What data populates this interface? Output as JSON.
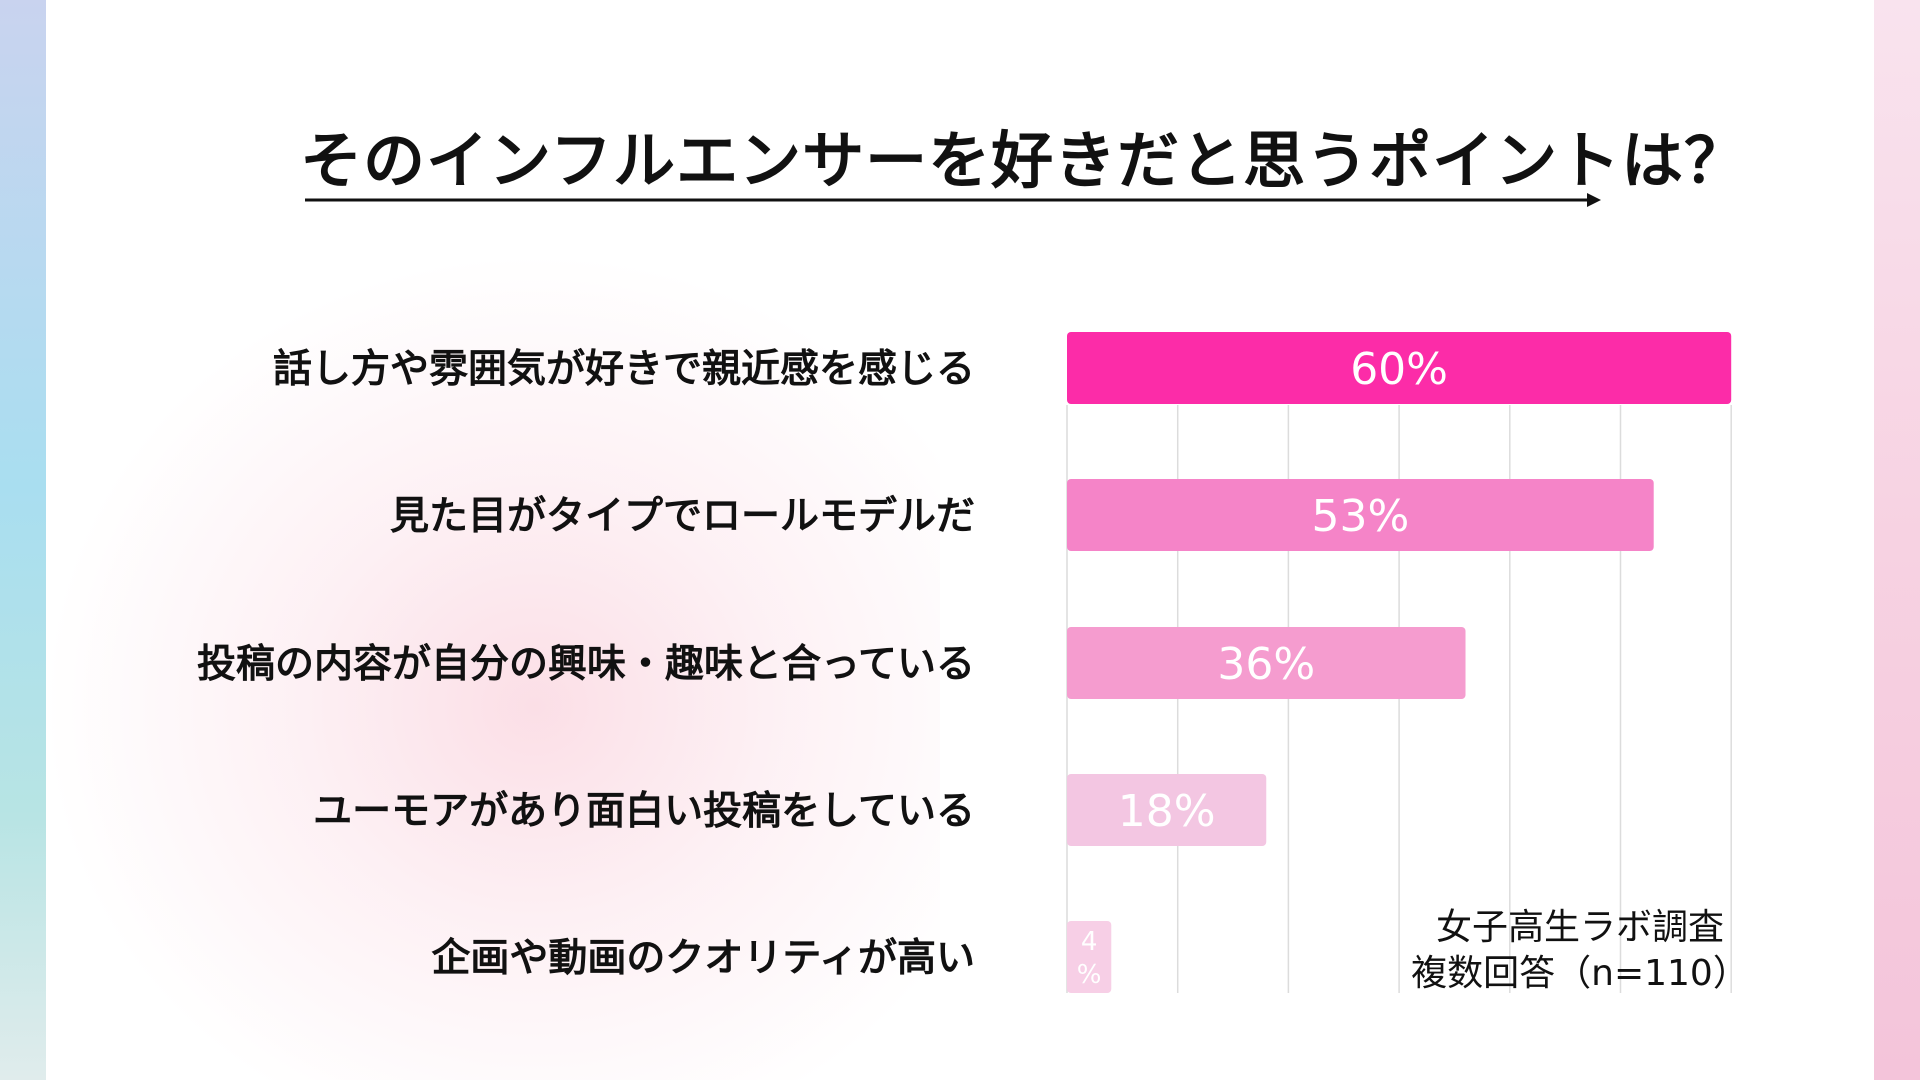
{
  "title": "そのインフルエンサーを好きだと思うポイントは？",
  "source": {
    "line1": "女子高生ラボ調査",
    "line2": "複数回答（n=110）"
  },
  "colors": {
    "bar_colors": [
      "#fc2ca8",
      "#f584c8",
      "#f59ccf",
      "#f3c6e2",
      "#f7cfe6"
    ],
    "gridline": "#dcdcdc",
    "text": "#111111"
  },
  "chart_data": {
    "type": "bar",
    "orientation": "horizontal",
    "categories": [
      "話し方や雰囲気が好きで親近感を感じる",
      "見た目がタイプでロールモデルだ",
      "投稿の内容が自分の興味・趣味と合っている",
      "ユーモアがあり面白い投稿をしている",
      "企画や動画のクオリティが高い"
    ],
    "values": [
      60,
      53,
      36,
      18,
      4
    ],
    "data_labels": [
      "60%",
      "53%",
      "36%",
      "18%",
      "4%"
    ],
    "xlim": [
      0,
      60
    ],
    "grid": true,
    "unit": "%"
  }
}
